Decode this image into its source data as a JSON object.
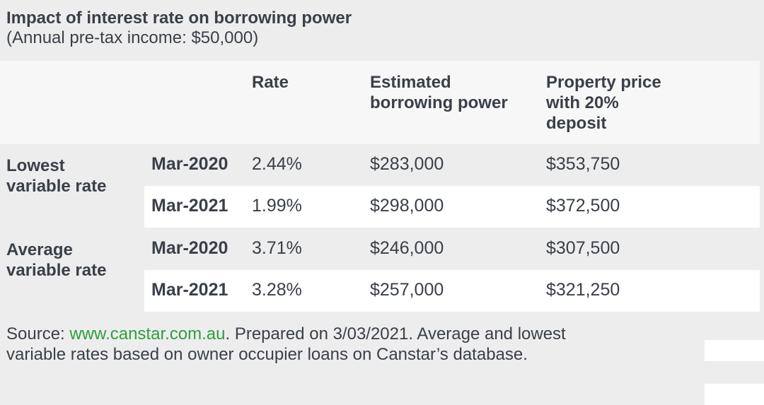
{
  "title": "Impact of interest rate on borrowing power",
  "subtitle": "(Annual pre-tax income: $50,000)",
  "columns": {
    "rate": "Rate",
    "borrow_line1": "Estimated",
    "borrow_line2": "borrowing power",
    "price_line1": "Property price",
    "price_line2": "with 20%",
    "price_line3": "deposit"
  },
  "groups": [
    {
      "label_line1": "Lowest",
      "label_line2": "variable rate",
      "rows": [
        {
          "date": "Mar-2020",
          "rate": "2.44%",
          "borrowing": "$283,000",
          "price": "$353,750"
        },
        {
          "date": "Mar-2021",
          "rate": "1.99%",
          "borrowing": "$298,000",
          "price": "$372,500"
        }
      ]
    },
    {
      "label_line1": "Average",
      "label_line2": "variable rate",
      "rows": [
        {
          "date": "Mar-2020",
          "rate": "3.71%",
          "borrowing": "$246,000",
          "price": "$307,500"
        },
        {
          "date": "Mar-2021",
          "rate": "3.28%",
          "borrowing": "$257,000",
          "price": "$321,250"
        }
      ]
    }
  ],
  "source": {
    "prefix": "Source: ",
    "link": "www.canstar.com.au",
    "line1_rest": ". Prepared on 3/03/2021. Average and lowest",
    "line2": "variable rates based on owner occupier loans on Canstar’s database."
  },
  "colors": {
    "background": "#ededed",
    "row_alt": "#ffffff",
    "header_bg": "#f7f7f7",
    "link": "#2e9e3d",
    "text": "#3a3f48"
  }
}
